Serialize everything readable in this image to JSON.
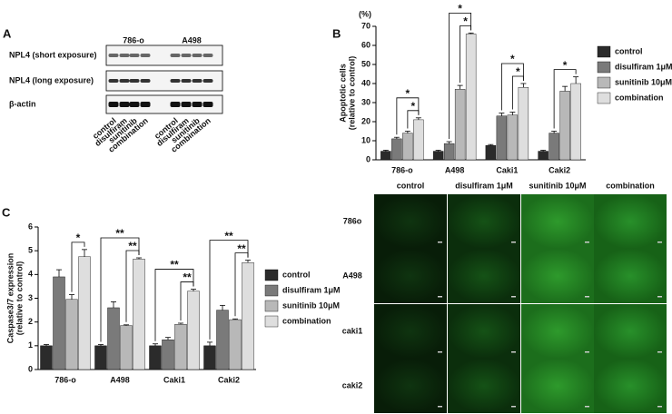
{
  "panel_a": {
    "label": "A",
    "groups": [
      "786-o",
      "A498"
    ],
    "rows": [
      "NPL4 (short exposure)",
      "NPL4 (long exposure)",
      "β-actin"
    ],
    "lanes": [
      "control",
      "disulfiram",
      "sunitinib",
      "combination",
      "control",
      "disulfiram",
      "sunitinib",
      "combination"
    ]
  },
  "chart_data": [
    {
      "label": "B",
      "type": "bar",
      "unit_label": "(%)",
      "y_label": [
        "Apoptotic cells",
        "(relative to control)"
      ],
      "categories": [
        "786-o",
        "A498",
        "Caki1",
        "Caki2"
      ],
      "series": [
        {
          "name": "control",
          "color": "#2b2b2b",
          "values": [
            4.5,
            4.5,
            7.5,
            4.5
          ],
          "errors": [
            0.5,
            0.5,
            0.5,
            0.5
          ]
        },
        {
          "name": "disulfiram 1μM",
          "color": "#7a7a7a",
          "values": [
            11,
            8.5,
            23,
            14
          ],
          "errors": [
            0.8,
            1,
            1.5,
            1
          ]
        },
        {
          "name": "sunitinib 10μM",
          "color": "#b8b8b8",
          "values": [
            14,
            37,
            23.5,
            36
          ],
          "errors": [
            1,
            2,
            1.5,
            2.5
          ]
        },
        {
          "name": "combination",
          "color": "#dedede",
          "values": [
            21,
            66,
            38,
            40
          ],
          "errors": [
            1,
            0.5,
            2,
            3.5
          ]
        }
      ],
      "significance": [
        {
          "label": "*",
          "category": "786-o",
          "between": [
            "sunitinib 10μM",
            "combination"
          ]
        },
        {
          "label": "*",
          "category": "786-o",
          "between": [
            "disulfiram 1μM",
            "combination"
          ]
        },
        {
          "label": "*",
          "category": "A498",
          "between": [
            "sunitinib 10μM",
            "combination"
          ]
        },
        {
          "label": "*",
          "category": "A498",
          "between": [
            "disulfiram 1μM",
            "combination"
          ]
        },
        {
          "label": "*",
          "category": "Caki1",
          "between": [
            "sunitinib 10μM",
            "combination"
          ]
        },
        {
          "label": "*",
          "category": "Caki1",
          "between": [
            "disulfiram 1μM",
            "combination"
          ]
        },
        {
          "label": "*",
          "category": "Caki2",
          "between": [
            "disulfiram 1μM",
            "combination"
          ]
        }
      ],
      "ylim": [
        0,
        70
      ],
      "yticks": [
        0,
        10,
        20,
        30,
        40,
        50,
        60,
        70
      ],
      "legend": "right"
    },
    {
      "label": "C",
      "type": "bar",
      "y_label": [
        "Caspase3/7 expression",
        "(relative to control)"
      ],
      "categories": [
        "786-o",
        "A498",
        "Caki1",
        "Caki2"
      ],
      "series": [
        {
          "name": "control",
          "color": "#2b2b2b",
          "values": [
            1,
            1,
            1,
            1
          ],
          "errors": [
            0.05,
            0.05,
            0.08,
            0.15
          ]
        },
        {
          "name": "disulfiram 1μM",
          "color": "#7a7a7a",
          "values": [
            3.9,
            2.6,
            1.25,
            2.5
          ],
          "errors": [
            0.3,
            0.25,
            0.1,
            0.2
          ]
        },
        {
          "name": "sunitinib 10μM",
          "color": "#b8b8b8",
          "values": [
            2.95,
            1.85,
            1.9,
            2.1
          ],
          "errors": [
            0.2,
            0.03,
            0.05,
            0.03
          ]
        },
        {
          "name": "combination",
          "color": "#dedede",
          "values": [
            4.75,
            4.65,
            3.3,
            4.5
          ],
          "errors": [
            0.3,
            0.05,
            0.08,
            0.1
          ]
        }
      ],
      "significance": [
        {
          "label": "*",
          "category": "786-o",
          "between": [
            "sunitinib 10μM",
            "combination"
          ]
        },
        {
          "label": "**",
          "category": "A498",
          "between": [
            "sunitinib 10μM",
            "combination"
          ]
        },
        {
          "label": "**",
          "category": "A498",
          "between": [
            "control",
            "combination"
          ]
        },
        {
          "label": "**",
          "category": "Caki1",
          "between": [
            "sunitinib 10μM",
            "combination"
          ]
        },
        {
          "label": "**",
          "category": "Caki1",
          "between": [
            "control",
            "combination"
          ]
        },
        {
          "label": "**",
          "category": "Caki2",
          "between": [
            "sunitinib 10μM",
            "combination"
          ]
        },
        {
          "label": "**",
          "category": "Caki2",
          "between": [
            "control",
            "combination"
          ]
        }
      ],
      "ylim": [
        0,
        6
      ],
      "yticks": [
        0,
        1,
        2,
        3,
        4,
        5,
        6
      ],
      "legend": "right"
    }
  ],
  "panel_d": {
    "columns": [
      "control",
      "disulfiram 1μM",
      "sunitinib 10μM",
      "combination"
    ],
    "rows": [
      "786o",
      "A498",
      "caki1",
      "caki2"
    ]
  }
}
